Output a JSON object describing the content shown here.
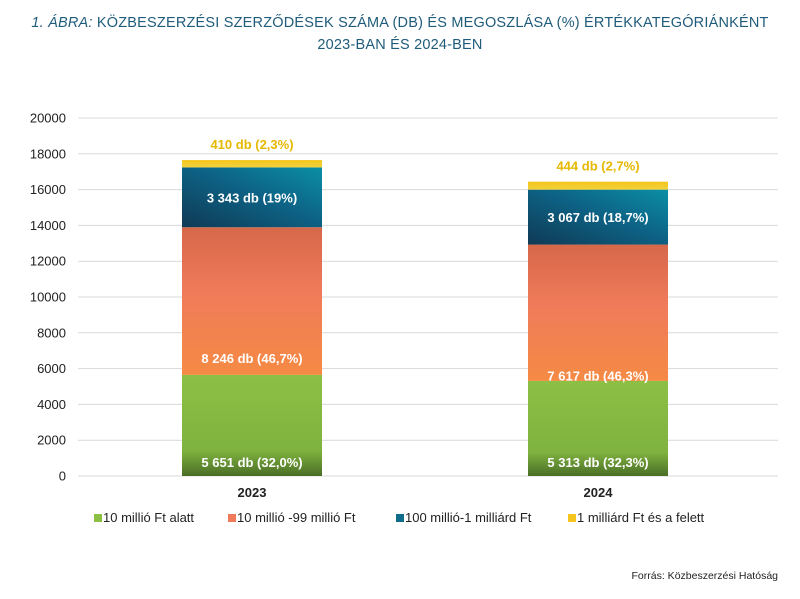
{
  "title": {
    "lead": "1. ÁBRA:",
    "line1": "KÖZBESZERZÉSI SZERZŐDÉSEK SZÁMA (DB) ÉS MEGOSZLÁSA (%) ÉRTÉKKATEGÓRIÁNKÉNT",
    "line2": "2023-BAN ÉS 2024-BEN"
  },
  "source": "Forrás: Közbeszerzési  Hatóság",
  "colors": {
    "green": "#8cc044",
    "orange": "#ef7b5c",
    "teal": "#0d6d8b",
    "yellow": "#f4c51c",
    "yellow_label": "#e6b800"
  },
  "chart_data": {
    "type": "bar",
    "stacked": true,
    "categories": [
      "2023",
      "2024"
    ],
    "ylim": [
      0,
      20000
    ],
    "yticks": [
      "0",
      "2000",
      "4000",
      "6000",
      "8000",
      "10000",
      "12000",
      "14000",
      "16000",
      "18000",
      "20000"
    ],
    "grid": true,
    "legend_position": "bottom",
    "series": [
      {
        "name": "10 millió Ft alatt",
        "values": [
          5651,
          5313
        ],
        "labels": [
          "5 651 db (32,0%)",
          "5 313 db (32,3%)"
        ]
      },
      {
        "name": "10 millió -99 millió Ft",
        "values": [
          8246,
          7617
        ],
        "labels": [
          "8 246 db (46,7%)",
          "7 617 db (46,3%)"
        ]
      },
      {
        "name": "100 millió-1 milliárd Ft",
        "values": [
          3343,
          3067
        ],
        "labels": [
          "3 343 db (19%)",
          "3 067 db (18,7%)"
        ]
      },
      {
        "name": "1 milliárd Ft és a felett",
        "values": [
          410,
          444
        ],
        "labels": [
          "410 db (2,3%)",
          "444 db (2,7%)"
        ]
      }
    ]
  }
}
